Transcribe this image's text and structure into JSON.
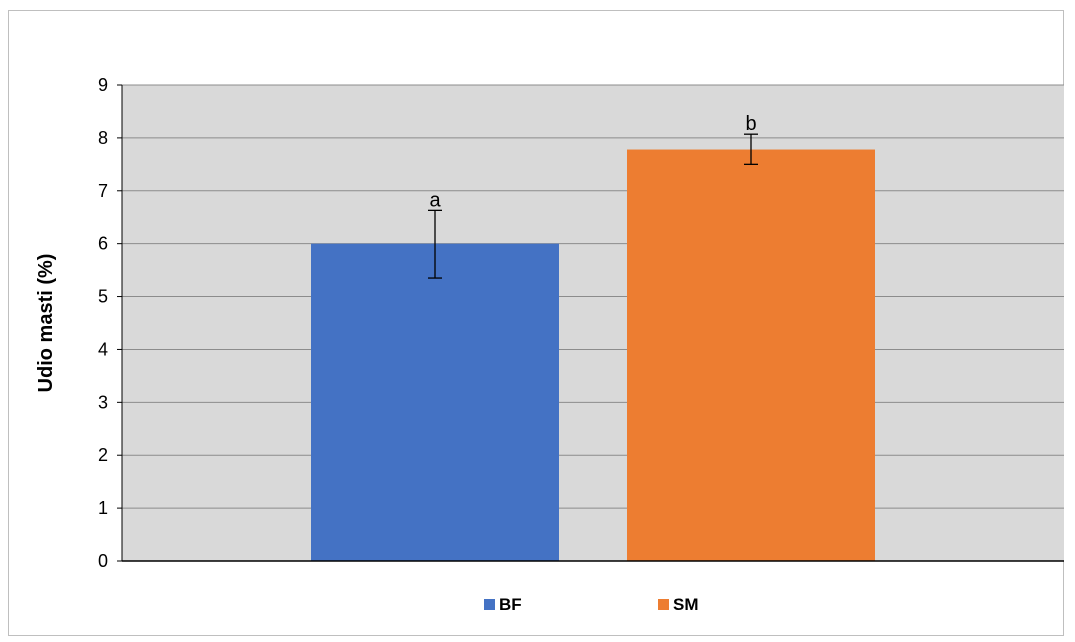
{
  "chart_data": {
    "type": "bar",
    "title": "",
    "xlabel": "",
    "ylabel": "Udio masti (%)",
    "ylim": [
      0,
      9
    ],
    "yticks": [
      0,
      1,
      2,
      3,
      4,
      5,
      6,
      7,
      8,
      9
    ],
    "grid": true,
    "legend_position": "bottom",
    "plot_background": "#d9d9d9",
    "series": [
      {
        "name": "BF",
        "value": 6.0,
        "error_low": 5.35,
        "error_high": 6.63,
        "label": "a",
        "color": "#4472c4"
      },
      {
        "name": "SM",
        "value": 7.78,
        "error_low": 7.5,
        "error_high": 8.07,
        "label": "b",
        "color": "#ed7d31"
      }
    ]
  }
}
